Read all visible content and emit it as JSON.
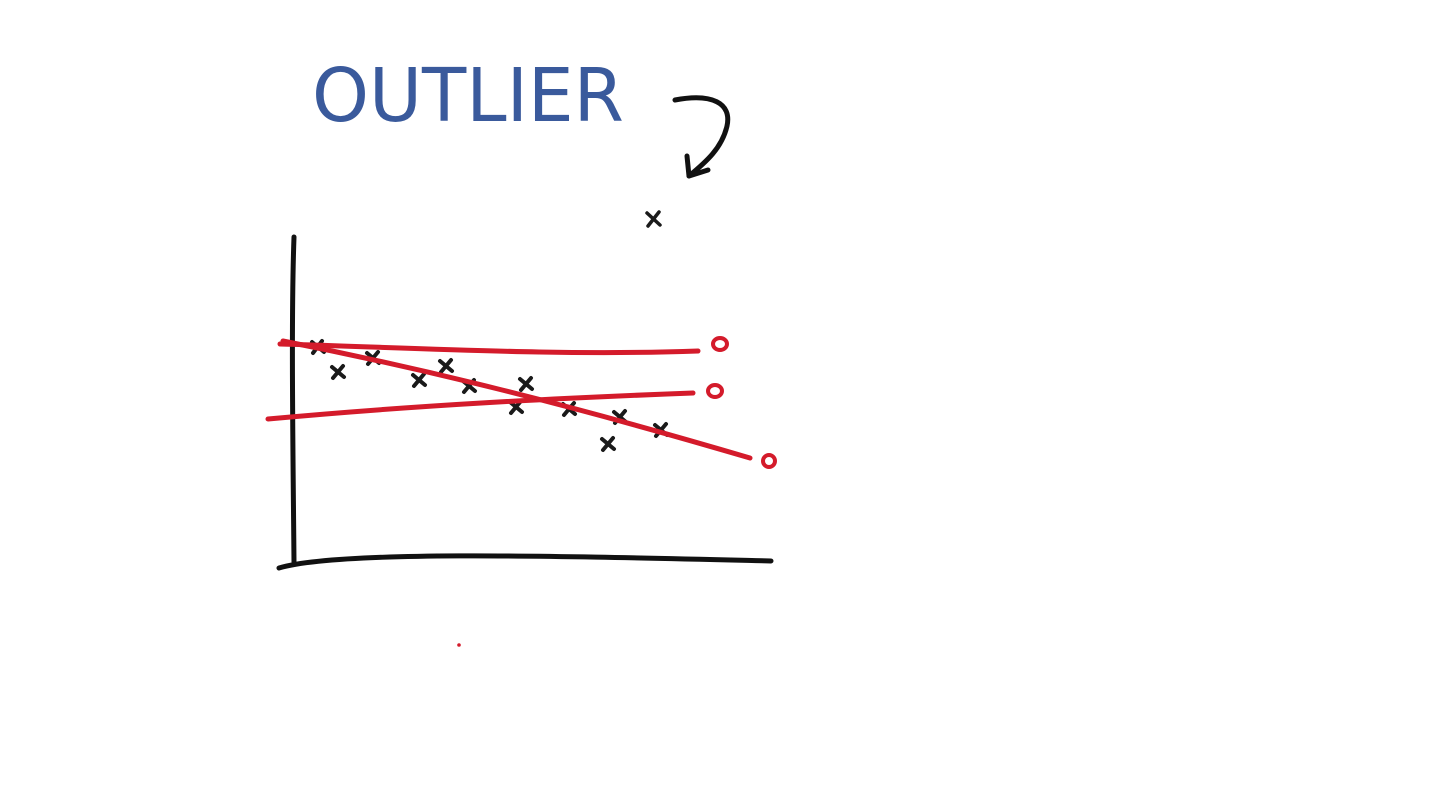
{
  "diagram": {
    "annotation": "OUTLIER",
    "colors": {
      "annotation": "#3a5a9c",
      "axes": "#111111",
      "points": "#1a1a1a",
      "fit_lines": "#d41b2b",
      "background": "#ffffff"
    }
  }
}
